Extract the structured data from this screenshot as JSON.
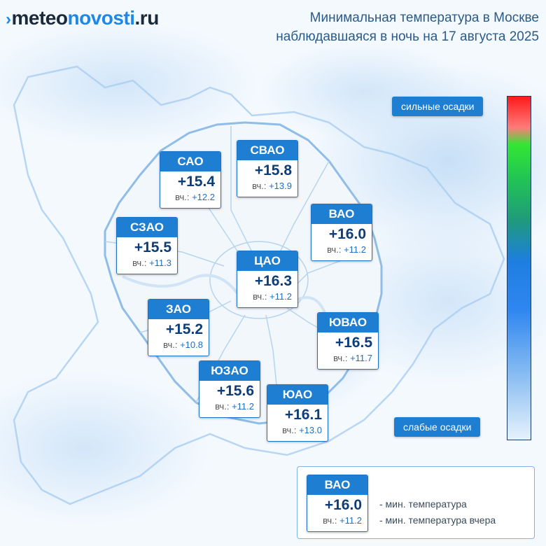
{
  "header": {
    "logo_mark": "›",
    "logo_part1": "meteo",
    "logo_part2": "novosti",
    "logo_part3": ".ru",
    "title_line1": "Минимальная температура в Москве",
    "title_line2": "наблюдавшаяся в ночь на 17 августа 2025"
  },
  "districts": [
    {
      "name": "САО",
      "temp": "+15.4",
      "prev_label": "вч.:",
      "prev": "+12.2"
    },
    {
      "name": "СВАО",
      "temp": "+15.8",
      "prev_label": "вч.:",
      "prev": "+13.9"
    },
    {
      "name": "ВАО",
      "temp": "+16.0",
      "prev_label": "вч.:",
      "prev": "+11.2"
    },
    {
      "name": "СЗАО",
      "temp": "+15.5",
      "prev_label": "вч.:",
      "prev": "+11.3"
    },
    {
      "name": "ЦАО",
      "temp": "+16.3",
      "prev_label": "вч.:",
      "prev": "+11.2"
    },
    {
      "name": "ЗАО",
      "temp": "+15.2",
      "prev_label": "вч.:",
      "prev": "+10.8"
    },
    {
      "name": "ЮВАО",
      "temp": "+16.5",
      "prev_label": "вч.:",
      "prev": "+11.7"
    },
    {
      "name": "ЮЗАО",
      "temp": "+15.6",
      "prev_label": "вч.:",
      "prev": "+11.2"
    },
    {
      "name": "ЮАО",
      "temp": "+16.1",
      "prev_label": "вч.:",
      "prev": "+13.0"
    }
  ],
  "scale": {
    "top_label": "сильные осадки",
    "bottom_label": "слабые осадки"
  },
  "legend": {
    "sample_name": "ВАО",
    "sample_temp": "+16.0",
    "sample_prev_label": "вч.:",
    "sample_prev": "+11.2",
    "line1": "- мин. температура",
    "line2": "- мин. температура вчера"
  },
  "colors": {
    "badge_blue": "#1e7fd2",
    "temp_text": "#0d3e7a",
    "border_line": "#7fb3e6"
  }
}
